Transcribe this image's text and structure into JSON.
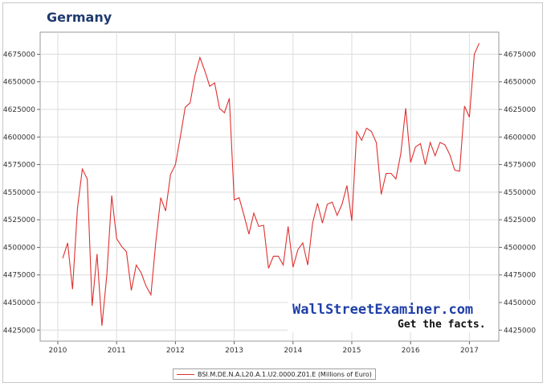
{
  "chart_data": {
    "type": "line",
    "title": "Germany",
    "xlabel": "",
    "ylabel": "",
    "xlim": [
      2009.7,
      2017.5
    ],
    "ylim": [
      4415000,
      4695000
    ],
    "x_ticks": [
      "2010",
      "2011",
      "2012",
      "2013",
      "2014",
      "2015",
      "2016",
      "2017"
    ],
    "y_ticks": [
      "4425000",
      "4450000",
      "4475000",
      "4500000",
      "4525000",
      "4550000",
      "4575000",
      "4600000",
      "4625000",
      "4650000",
      "4675000"
    ],
    "grid": true,
    "legend_position": "bottom",
    "series": [
      {
        "name": "BSI.M.DE.N.A.L20.A.1.U2.0000.Z01.E (Millions of Euro)",
        "color": "#e03030",
        "x": [
          "2010-02",
          "2010-03",
          "2010-04",
          "2010-05",
          "2010-06",
          "2010-07",
          "2010-08",
          "2010-09",
          "2010-10",
          "2010-11",
          "2010-12",
          "2011-01",
          "2011-02",
          "2011-03",
          "2011-04",
          "2011-05",
          "2011-06",
          "2011-07",
          "2011-08",
          "2011-09",
          "2011-10",
          "2011-11",
          "2011-12",
          "2012-01",
          "2012-02",
          "2012-03",
          "2012-04",
          "2012-05",
          "2012-06",
          "2012-07",
          "2012-08",
          "2012-09",
          "2012-10",
          "2012-11",
          "2012-12",
          "2013-01",
          "2013-02",
          "2013-03",
          "2013-04",
          "2013-05",
          "2013-06",
          "2013-07",
          "2013-08",
          "2013-09",
          "2013-10",
          "2013-11",
          "2013-12",
          "2014-01",
          "2014-02",
          "2014-03",
          "2014-04",
          "2014-05",
          "2014-06",
          "2014-07",
          "2014-08",
          "2014-09",
          "2014-10",
          "2014-11",
          "2014-12",
          "2015-01",
          "2015-02",
          "2015-03",
          "2015-04",
          "2015-05",
          "2015-06",
          "2015-07",
          "2015-08",
          "2015-09",
          "2015-10",
          "2015-11",
          "2015-12",
          "2016-01",
          "2016-02",
          "2016-03",
          "2016-04",
          "2016-05",
          "2016-06",
          "2016-07",
          "2016-08",
          "2016-09",
          "2016-10",
          "2016-11",
          "2016-12",
          "2017-01",
          "2017-02",
          "2017-03"
        ],
        "y": [
          4490000,
          4504000,
          4462000,
          4535000,
          4571000,
          4562000,
          4447000,
          4494000,
          4429000,
          4475000,
          4547000,
          4508000,
          4501000,
          4496000,
          4461000,
          4484000,
          4477000,
          4465000,
          4457000,
          4505000,
          4545000,
          4533000,
          4566000,
          4575000,
          4600000,
          4627000,
          4631000,
          4656000,
          4672000,
          4660000,
          4646000,
          4649000,
          4626000,
          4622000,
          4635000,
          4543000,
          4545000,
          4529000,
          4512000,
          4531000,
          4519000,
          4520000,
          4481000,
          4492000,
          4492000,
          4484000,
          4519000,
          4482000,
          4498000,
          4504000,
          4484000,
          4522000,
          4540000,
          4522000,
          4539000,
          4541000,
          4529000,
          4539000,
          4556000,
          4524000,
          4605000,
          4597000,
          4608000,
          4605000,
          4595000,
          4548000,
          4567000,
          4567000,
          4562000,
          4585000,
          4626000,
          4577000,
          4591000,
          4594000,
          4575000,
          4595000,
          4583000,
          4595000,
          4593000,
          4584000,
          4570000,
          4569000,
          4628000,
          4618000,
          4675000,
          4685000
        ]
      }
    ]
  },
  "watermark": {
    "site": "WallStreetExaminer.com",
    "tagline": "Get the facts."
  }
}
